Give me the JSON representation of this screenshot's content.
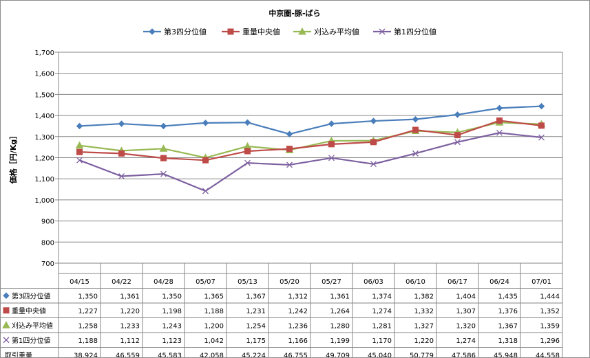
{
  "chart_data": {
    "type": "line",
    "title": "中京圏-豚-ばら",
    "ylabel": "価格［円/Kg］",
    "ylim": [
      700,
      1700
    ],
    "ytick_step": 100,
    "yticks": [
      "700",
      "800",
      "900",
      "1,000",
      "1,100",
      "1,200",
      "1,300",
      "1,400",
      "1,500",
      "1,600",
      "1,700"
    ],
    "grid": true,
    "legend_position": "top",
    "categories": [
      "04/15",
      "04/22",
      "04/28",
      "05/07",
      "05/13",
      "05/20",
      "05/27",
      "06/03",
      "06/10",
      "06/17",
      "06/24",
      "07/01"
    ],
    "series": [
      {
        "name": "第3四分位値",
        "color": "#4a7ebb",
        "marker": "diamond",
        "values": [
          1350,
          1361,
          1350,
          1365,
          1367,
          1312,
          1361,
          1374,
          1382,
          1404,
          1435,
          1444
        ],
        "labels": [
          "1,350",
          "1,361",
          "1,350",
          "1,365",
          "1,367",
          "1,312",
          "1,361",
          "1,374",
          "1,382",
          "1,404",
          "1,435",
          "1,444"
        ]
      },
      {
        "name": "重量中央値",
        "color": "#be4b48",
        "marker": "square",
        "values": [
          1227,
          1220,
          1198,
          1188,
          1231,
          1242,
          1264,
          1274,
          1332,
          1307,
          1376,
          1352
        ],
        "labels": [
          "1,227",
          "1,220",
          "1,198",
          "1,188",
          "1,231",
          "1,242",
          "1,264",
          "1,274",
          "1,332",
          "1,307",
          "1,376",
          "1,352"
        ]
      },
      {
        "name": "刈込み平均値",
        "color": "#98b954",
        "marker": "triangle",
        "values": [
          1258,
          1233,
          1243,
          1200,
          1254,
          1236,
          1280,
          1281,
          1327,
          1320,
          1367,
          1359
        ],
        "labels": [
          "1,258",
          "1,233",
          "1,243",
          "1,200",
          "1,254",
          "1,236",
          "1,280",
          "1,281",
          "1,327",
          "1,320",
          "1,367",
          "1,359"
        ]
      },
      {
        "name": "第1四分位値",
        "color": "#7d60a0",
        "marker": "x",
        "values": [
          1188,
          1112,
          1123,
          1042,
          1175,
          1166,
          1199,
          1170,
          1220,
          1274,
          1318,
          1296
        ],
        "labels": [
          "1,188",
          "1,112",
          "1,123",
          "1,042",
          "1,175",
          "1,166",
          "1,199",
          "1,170",
          "1,220",
          "1,274",
          "1,318",
          "1,296"
        ]
      }
    ],
    "extra_rows": [
      {
        "name": "取引重量",
        "labels": [
          "38,924",
          "46,559",
          "45,583",
          "42,058",
          "45,224",
          "46,755",
          "49,709",
          "45,040",
          "50,779",
          "47,586",
          "45,948",
          "44,558"
        ]
      }
    ]
  }
}
